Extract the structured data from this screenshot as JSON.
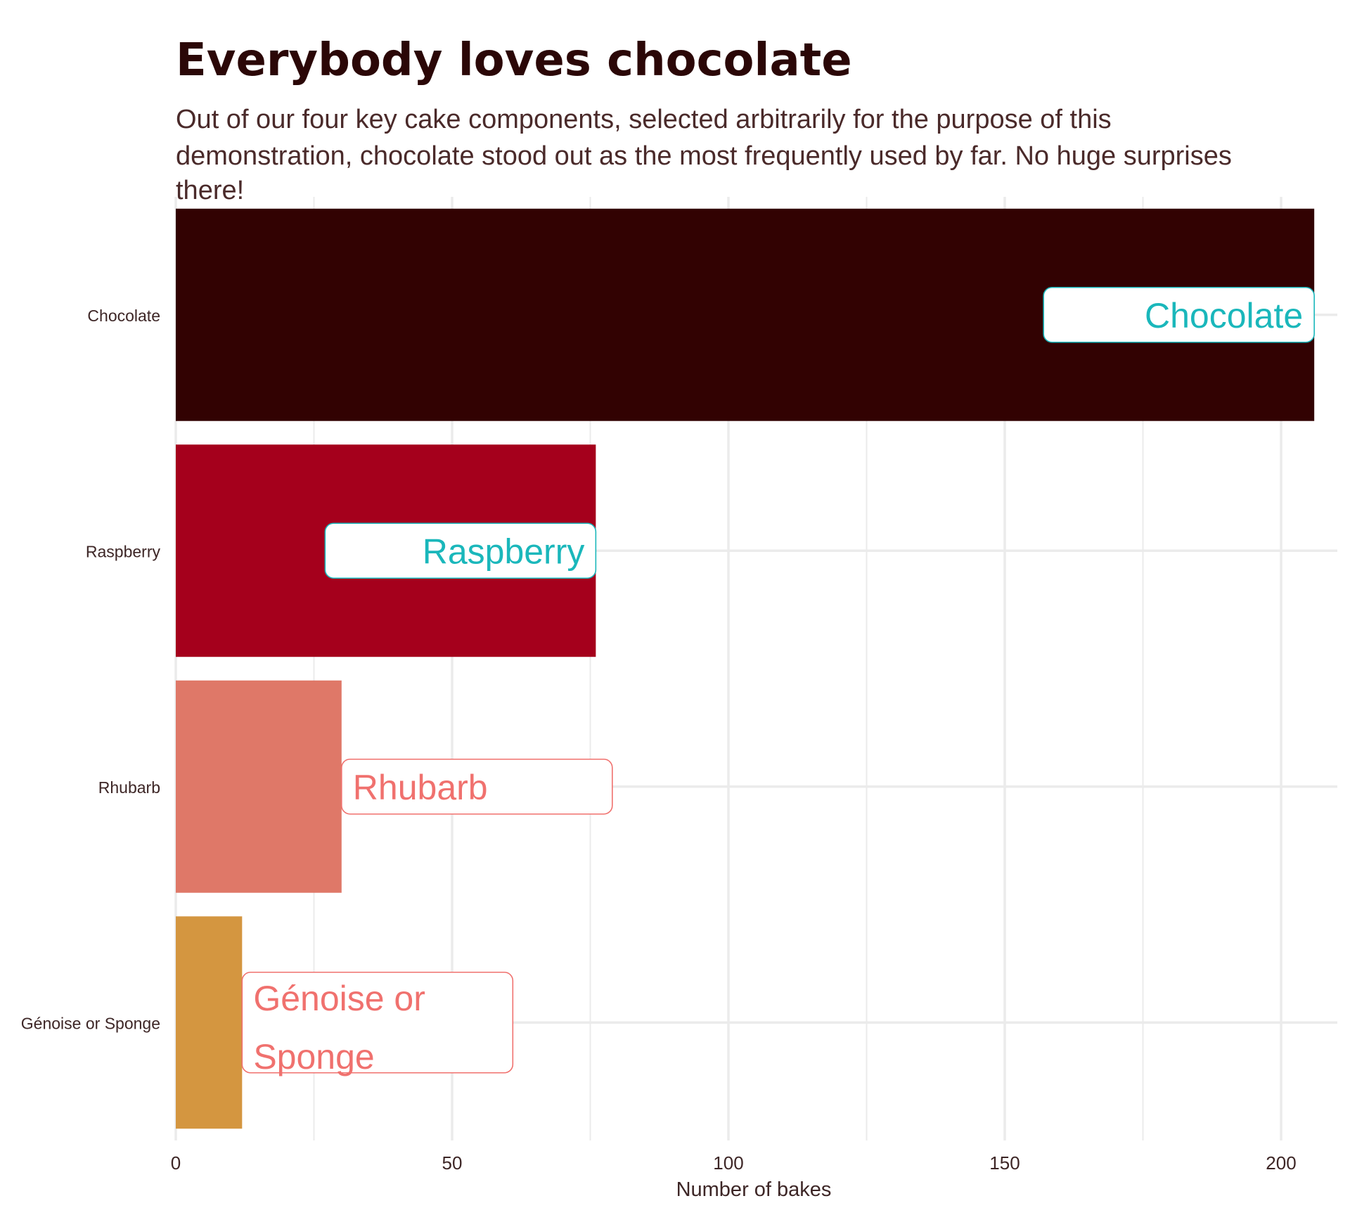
{
  "chart_data": {
    "type": "bar",
    "orientation": "horizontal",
    "title": "Everybody loves chocolate",
    "subtitle_lines": [
      "Out of our four key cake components, selected arbitrarily for the purpose of this",
      "demonstration, chocolate stood out as the most frequently used by far. No huge surprises",
      "there!"
    ],
    "xlabel": "Number of bakes",
    "ylabel": "",
    "xlim": [
      0,
      210
    ],
    "x_ticks": [
      0,
      50,
      100,
      150,
      200
    ],
    "grid": true,
    "categories": [
      "Chocolate",
      "Raspberry",
      "Rhubarb",
      "Génoise or Sponge"
    ],
    "values": [
      206,
      76,
      30,
      12
    ],
    "bar_colors": [
      "#320202",
      "#a5001c",
      "#df7868",
      "#d49640"
    ],
    "annotations": [
      {
        "category": "Chocolate",
        "lines": [
          "Chocolate"
        ],
        "placement": "inside-end",
        "color": "#1ab7bb"
      },
      {
        "category": "Raspberry",
        "lines": [
          "Raspberry"
        ],
        "placement": "inside-end",
        "color": "#1ab7bb"
      },
      {
        "category": "Rhubarb",
        "lines": [
          "Rhubarb"
        ],
        "placement": "outside-end",
        "color": "#f0716e"
      },
      {
        "category": "Génoise or Sponge",
        "lines": [
          "Génoise or",
          "Sponge"
        ],
        "placement": "outside-end",
        "color": "#f0716e"
      }
    ],
    "colors": {
      "title": "#2b0707",
      "subtitle": "#4a2a2a",
      "axis_text": "#3d2626",
      "grid": "#ebebeb"
    }
  }
}
